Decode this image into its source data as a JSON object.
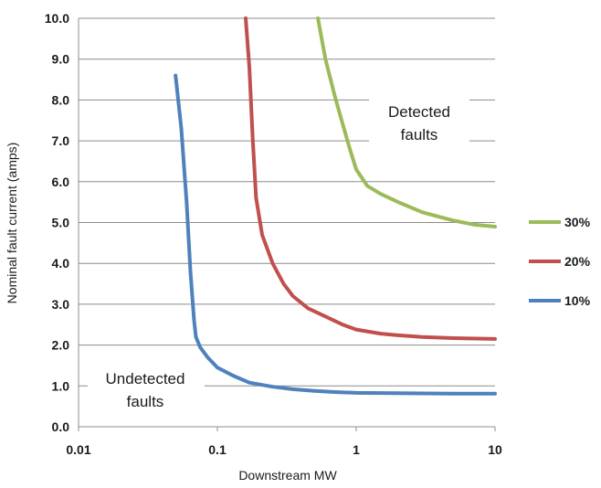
{
  "chart_data": {
    "type": "line",
    "title": "",
    "xlabel": "Downstream MW",
    "ylabel": "Nominal fault current (amps)",
    "x_scale": "log",
    "xlim": [
      0.01,
      10
    ],
    "ylim": [
      0,
      10
    ],
    "x_ticks": [
      "0.01",
      "0.1",
      "1",
      "10"
    ],
    "y_ticks": [
      "0.0",
      "1.0",
      "2.0",
      "3.0",
      "4.0",
      "5.0",
      "6.0",
      "7.0",
      "8.0",
      "9.0",
      "10.0"
    ],
    "grid": "horizontal",
    "legend_position": "right",
    "annotations": [
      {
        "lines": [
          "Detected",
          "faults"
        ]
      },
      {
        "lines": [
          "Undetected",
          "faults"
        ]
      }
    ],
    "series": [
      {
        "name": "30%",
        "color": "#9bbb59",
        "points": [
          [
            0.53,
            10.0
          ],
          [
            0.6,
            9.0
          ],
          [
            0.7,
            8.1
          ],
          [
            0.8,
            7.4
          ],
          [
            0.9,
            6.8
          ],
          [
            1.0,
            6.3
          ],
          [
            1.2,
            5.9
          ],
          [
            1.5,
            5.7
          ],
          [
            2.0,
            5.5
          ],
          [
            3.0,
            5.25
          ],
          [
            5.0,
            5.05
          ],
          [
            7.0,
            4.95
          ],
          [
            10.0,
            4.9
          ]
        ]
      },
      {
        "name": "20%",
        "color": "#c0504d",
        "points": [
          [
            0.16,
            10.0
          ],
          [
            0.17,
            8.8
          ],
          [
            0.18,
            7.0
          ],
          [
            0.19,
            5.6
          ],
          [
            0.21,
            4.7
          ],
          [
            0.25,
            4.0
          ],
          [
            0.3,
            3.5
          ],
          [
            0.35,
            3.2
          ],
          [
            0.45,
            2.9
          ],
          [
            0.6,
            2.7
          ],
          [
            0.8,
            2.5
          ],
          [
            1.0,
            2.38
          ],
          [
            1.5,
            2.28
          ],
          [
            2.0,
            2.24
          ],
          [
            3.0,
            2.2
          ],
          [
            5.0,
            2.17
          ],
          [
            10.0,
            2.15
          ]
        ]
      },
      {
        "name": "10%",
        "color": "#4f81bd",
        "points": [
          [
            0.05,
            8.6
          ],
          [
            0.055,
            7.3
          ],
          [
            0.06,
            5.5
          ],
          [
            0.064,
            3.8
          ],
          [
            0.068,
            2.6
          ],
          [
            0.07,
            2.2
          ],
          [
            0.075,
            1.95
          ],
          [
            0.085,
            1.7
          ],
          [
            0.1,
            1.45
          ],
          [
            0.13,
            1.25
          ],
          [
            0.17,
            1.08
          ],
          [
            0.25,
            0.98
          ],
          [
            0.35,
            0.92
          ],
          [
            0.5,
            0.88
          ],
          [
            0.7,
            0.85
          ],
          [
            1.0,
            0.83
          ],
          [
            2.0,
            0.82
          ],
          [
            5.0,
            0.81
          ],
          [
            10.0,
            0.81
          ]
        ]
      }
    ]
  }
}
